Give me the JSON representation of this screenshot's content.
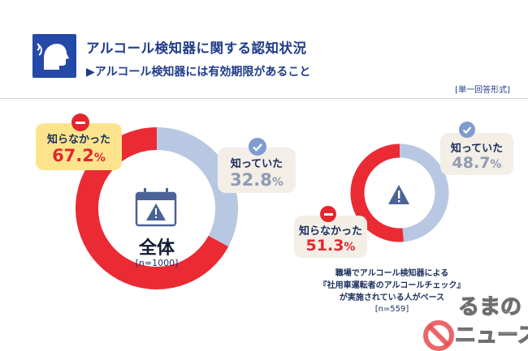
{
  "header": {
    "title": "アルコール検知器に関する認知状況",
    "subtitle": "▶アルコール検知器には有効期限があること",
    "format_note": "[単一回答形式]"
  },
  "colors": {
    "red": "#ea2b33",
    "blue": "#b8c8e2",
    "navy": "#2549a8",
    "bubble_yellow": "#fde48c",
    "bubble_beige": "#f3eee6"
  },
  "chart_data": [
    {
      "type": "pie",
      "style": "donut",
      "title": "全体",
      "sample": "[n=1000]",
      "slices": [
        {
          "label": "知らなかった",
          "value": 67.2,
          "display": "67.2",
          "unit": "%",
          "color": "#ea2b33"
        },
        {
          "label": "知っていた",
          "value": 32.8,
          "display": "32.8",
          "unit": "%",
          "color": "#b8c8e2"
        }
      ]
    },
    {
      "type": "pie",
      "style": "donut",
      "title": "",
      "note_lines": [
        "職場でアルコール検知器による",
        "『社用車運転者のアルコールチェック』",
        "が実施されている人がベース"
      ],
      "sample": "[n=559]",
      "slices": [
        {
          "label": "知らなかった",
          "value": 51.3,
          "display": "51.3",
          "unit": "%",
          "color": "#ea2b33"
        },
        {
          "label": "知っていた",
          "value": 48.7,
          "display": "48.7",
          "unit": "%",
          "color": "#b8c8e2"
        }
      ]
    }
  ],
  "watermark": {
    "line1": "るまの",
    "line2": "ニュース"
  }
}
